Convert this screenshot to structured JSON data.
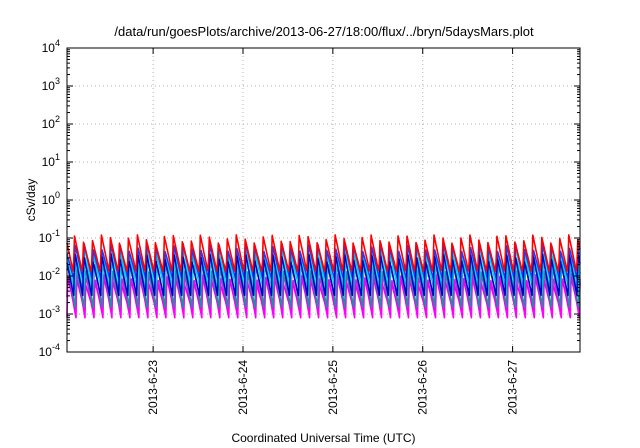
{
  "chart_data": {
    "type": "line",
    "title": "/data/run/goesPlots/archive/2013-06-27/18:00/flux/../bryn/5daysMars.plot",
    "xlabel": "Coordinated Universal Time (UTC)",
    "ylabel": "cSv/day",
    "yscale": "log",
    "ylim": [
      0.0001,
      10000
    ],
    "xlim": [
      "2013-06-22T01:00",
      "2013-06-27T18:00"
    ],
    "grid": true,
    "y_ticks": [
      {
        "base": "10",
        "exp": "-4",
        "value": 0.0001
      },
      {
        "base": "10",
        "exp": "-3",
        "value": 0.001
      },
      {
        "base": "10",
        "exp": "-2",
        "value": 0.01
      },
      {
        "base": "10",
        "exp": "-1",
        "value": 0.1
      },
      {
        "base": "10",
        "exp": "0",
        "value": 1
      },
      {
        "base": "10",
        "exp": "1",
        "value": 10
      },
      {
        "base": "10",
        "exp": "2",
        "value": 100
      },
      {
        "base": "10",
        "exp": "3",
        "value": 1000
      },
      {
        "base": "10",
        "exp": "4",
        "value": 10000
      }
    ],
    "x_ticks": [
      "2013-6-23",
      "2013-6-24",
      "2013-6-25",
      "2013-6-26",
      "2013-6-27"
    ],
    "sawtooth_period_hours": 2.4,
    "series": [
      {
        "color": "#ff00ff",
        "peak": 0.012,
        "trough": 0.0008
      },
      {
        "color": "#ee00ee",
        "peak": 0.008,
        "trough": 0.0012
      },
      {
        "color": "#1e90a0",
        "peak": 0.02,
        "trough": 0.0015
      },
      {
        "color": "#00ced1",
        "peak": 0.03,
        "trough": 0.004
      },
      {
        "color": "#00e5ee",
        "peak": 0.045,
        "trough": 0.006
      },
      {
        "color": "#1e3cff",
        "peak": 0.06,
        "trough": 0.008
      },
      {
        "color": "#0000cd",
        "peak": 0.035,
        "trough": 0.003
      },
      {
        "color": "#ff0000",
        "peak": 0.1,
        "trough": 0.012
      }
    ]
  }
}
